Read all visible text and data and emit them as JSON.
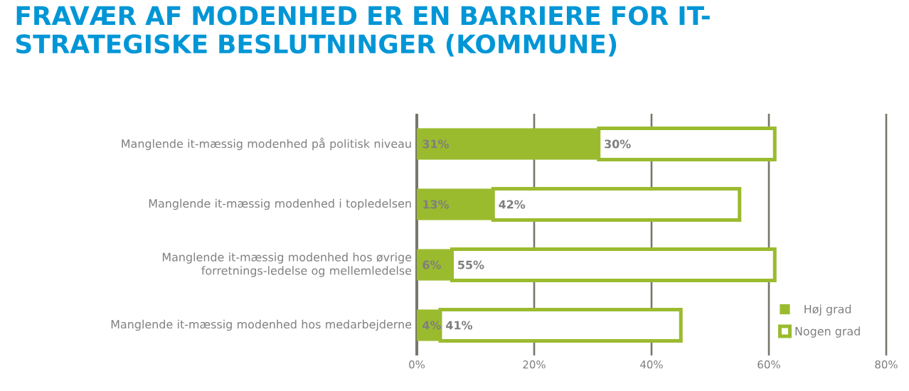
{
  "chart_data": {
    "type": "bar",
    "orientation": "horizontal",
    "stacked": true,
    "title": "FRAVÆR AF MODENHED ER EN BARRIERE FOR IT-STRATEGISKE BESLUTNINGER (KOMMUNE)",
    "categories": [
      "Manglende it-mæssig modenhed på politisk niveau",
      "Manglende it-mæssig modenhed i topledelsen",
      "Manglende it-mæssig modenhed hos øvrige forretnings-ledelse og mellemledelse",
      "Manglende it-mæssig modenhed hos medarbejderne"
    ],
    "series": [
      {
        "name": "Høj grad",
        "color": "#9bbb2f",
        "values": [
          31,
          13,
          6,
          4
        ],
        "value_labels": [
          "31%",
          "13%",
          "6%",
          "4%"
        ]
      },
      {
        "name": "Nogen grad",
        "color": "#9bbb2f",
        "values": [
          30,
          42,
          55,
          41
        ],
        "value_labels": [
          "30%",
          "42%",
          "55%",
          "41%"
        ]
      }
    ],
    "xlim": [
      0,
      80
    ],
    "xticks": [
      {
        "value": 0,
        "label": "0%"
      },
      {
        "value": 20,
        "label": "20%"
      },
      {
        "value": 40,
        "label": "40%"
      },
      {
        "value": 60,
        "label": "60%"
      },
      {
        "value": 80,
        "label": "80%"
      }
    ],
    "grid": "x",
    "legend": "bottom right"
  }
}
